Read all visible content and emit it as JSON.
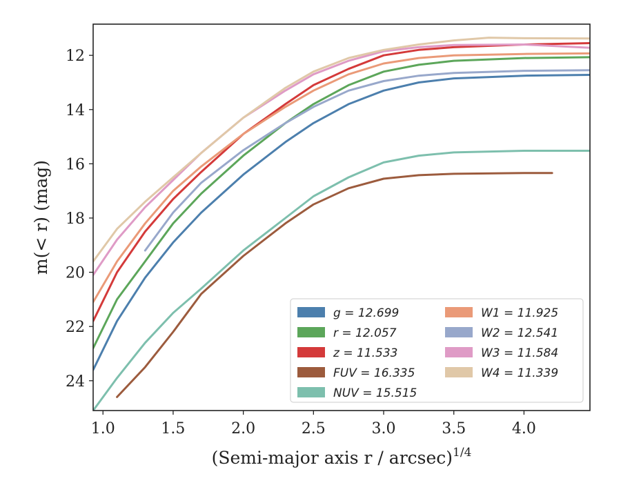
{
  "chart_data": {
    "type": "line",
    "xlabel": "(Semi-major axis r / arcsec)",
    "xlabel_exponent": "1/4",
    "ylabel": "m(< r) (mag)",
    "xlim": [
      0.93,
      4.47
    ],
    "ylim": [
      25.1,
      10.85
    ],
    "y_inverted": true,
    "grid": false,
    "legend_position": "lower-right",
    "legend_columns": 2,
    "xticks": [
      1.0,
      1.5,
      2.0,
      2.5,
      3.0,
      3.5,
      4.0
    ],
    "xtick_labels": [
      "1.0",
      "1.5",
      "2.0",
      "2.5",
      "3.0",
      "3.5",
      "4.0"
    ],
    "yticks": [
      12,
      14,
      16,
      18,
      20,
      22,
      24
    ],
    "ytick_labels": [
      "12",
      "14",
      "16",
      "18",
      "20",
      "22",
      "24"
    ],
    "series": [
      {
        "name": "g = 12.699",
        "label_var": "g",
        "label_val": "12.699",
        "color": "#4c7fad",
        "x": [
          0.93,
          1.1,
          1.3,
          1.5,
          1.7,
          2.0,
          2.3,
          2.5,
          2.75,
          3.0,
          3.25,
          3.5,
          4.0,
          4.47
        ],
        "y": [
          23.6,
          21.8,
          20.2,
          18.9,
          17.8,
          16.4,
          15.2,
          14.5,
          13.8,
          13.3,
          13.0,
          12.85,
          12.75,
          12.72
        ]
      },
      {
        "name": "r = 12.057",
        "label_var": "r",
        "label_val": "12.057",
        "color": "#5ca65a",
        "x": [
          0.93,
          1.1,
          1.3,
          1.5,
          1.7,
          2.0,
          2.3,
          2.5,
          2.75,
          3.0,
          3.25,
          3.5,
          4.0,
          4.47
        ],
        "y": [
          22.8,
          21.0,
          19.6,
          18.2,
          17.1,
          15.7,
          14.5,
          13.8,
          13.1,
          12.6,
          12.35,
          12.2,
          12.1,
          12.07
        ]
      },
      {
        "name": "z = 11.533",
        "label_var": "z",
        "label_val": "11.533",
        "color": "#d43a3a",
        "x": [
          0.93,
          1.1,
          1.3,
          1.5,
          1.7,
          2.0,
          2.3,
          2.5,
          2.75,
          3.0,
          3.25,
          3.5,
          4.0,
          4.47
        ],
        "y": [
          21.8,
          20.0,
          18.5,
          17.3,
          16.3,
          14.9,
          13.8,
          13.1,
          12.5,
          12.0,
          11.8,
          11.7,
          11.6,
          11.55
        ]
      },
      {
        "name": "FUV = 16.335",
        "label_var": "FUV",
        "label_val": "16.335",
        "color": "#9c5b3d",
        "x": [
          1.1,
          1.3,
          1.5,
          1.7,
          2.0,
          2.3,
          2.5,
          2.75,
          3.0,
          3.25,
          3.5,
          4.0,
          4.2
        ],
        "y": [
          24.6,
          23.5,
          22.2,
          20.8,
          19.4,
          18.2,
          17.5,
          16.9,
          16.55,
          16.42,
          16.37,
          16.34,
          16.34
        ]
      },
      {
        "name": "NUV = 15.515",
        "label_var": "NUV",
        "label_val": "15.515",
        "color": "#7dbfad",
        "x": [
          0.93,
          1.1,
          1.3,
          1.5,
          1.7,
          2.0,
          2.3,
          2.5,
          2.75,
          3.0,
          3.25,
          3.5,
          4.0,
          4.47
        ],
        "y": [
          25.1,
          23.9,
          22.6,
          21.5,
          20.6,
          19.2,
          18.0,
          17.2,
          16.5,
          15.95,
          15.7,
          15.58,
          15.52,
          15.52
        ]
      },
      {
        "name": "W1 = 11.925",
        "label_var": "W1",
        "label_val": "11.925",
        "color": "#ea9a78",
        "x": [
          0.93,
          1.1,
          1.3,
          1.5,
          1.7,
          2.0,
          2.3,
          2.5,
          2.75,
          3.0,
          3.25,
          3.5,
          4.0,
          4.47
        ],
        "y": [
          21.1,
          19.6,
          18.2,
          17.0,
          16.1,
          14.9,
          13.9,
          13.3,
          12.7,
          12.3,
          12.1,
          12.0,
          11.95,
          11.93
        ]
      },
      {
        "name": "W2 = 12.541",
        "label_var": "W2",
        "label_val": "12.541",
        "color": "#98a8cb",
        "x": [
          1.3,
          1.5,
          1.7,
          2.0,
          2.3,
          2.5,
          2.75,
          3.0,
          3.25,
          3.5,
          4.0,
          4.47
        ],
        "y": [
          19.2,
          17.8,
          16.7,
          15.5,
          14.5,
          13.9,
          13.3,
          12.95,
          12.75,
          12.65,
          12.57,
          12.55
        ]
      },
      {
        "name": "W3 = 11.584",
        "label_var": "W3",
        "label_val": "11.584",
        "color": "#df9bc6",
        "x": [
          0.93,
          1.1,
          1.3,
          1.5,
          1.7,
          2.0,
          2.3,
          2.5,
          2.75,
          3.0,
          3.25,
          3.5,
          4.0,
          4.47
        ],
        "y": [
          20.1,
          18.8,
          17.6,
          16.6,
          15.6,
          14.3,
          13.3,
          12.7,
          12.2,
          11.85,
          11.7,
          11.62,
          11.6,
          11.72
        ]
      },
      {
        "name": "W4 = 11.339",
        "label_var": "W4",
        "label_val": "11.339",
        "color": "#e0c8a8",
        "x": [
          0.93,
          1.1,
          1.3,
          1.5,
          1.7,
          2.0,
          2.3,
          2.5,
          2.75,
          3.0,
          3.25,
          3.5,
          3.75,
          4.0,
          4.47
        ],
        "y": [
          19.6,
          18.4,
          17.4,
          16.5,
          15.6,
          14.3,
          13.2,
          12.6,
          12.1,
          11.8,
          11.6,
          11.45,
          11.35,
          11.37,
          11.38
        ]
      }
    ]
  }
}
